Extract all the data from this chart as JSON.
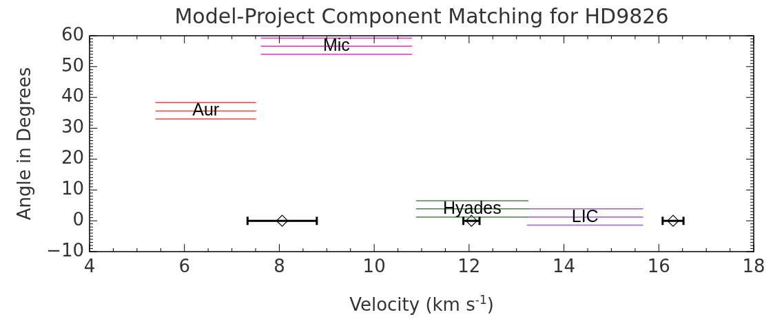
{
  "chart_data": {
    "type": "line",
    "title": "Model-Project Component Matching for HD9826",
    "xlabel": "Velocity (km s$^{-1}$)",
    "ylabel": "Angle in Degrees",
    "xlim": [
      4,
      18
    ],
    "xticks": [
      4,
      6,
      8,
      10,
      12,
      14,
      16,
      18
    ],
    "ylim": [
      -10,
      60
    ],
    "yticks": [
      -10,
      0,
      10,
      20,
      30,
      40,
      50,
      60
    ],
    "series": [
      {
        "color": "#ff3b3b",
        "x": [
          5.39,
          7.51
        ],
        "values": [
          38.3,
          38.3
        ]
      },
      {
        "name": "Aur",
        "color": "#ff3b3b",
        "x": [
          5.39,
          7.51
        ],
        "values": [
          35.6,
          35.6
        ]
      },
      {
        "color": "#ff3b3b",
        "x": [
          5.39,
          7.51
        ],
        "values": [
          33.0,
          33.0
        ]
      },
      {
        "color": "#ff22cc",
        "x": [
          7.61,
          10.8
        ],
        "values": [
          59.2,
          59.2
        ]
      },
      {
        "name": "Mic",
        "color": "#ff22cc",
        "x": [
          7.61,
          10.8
        ],
        "values": [
          56.6,
          56.6
        ]
      },
      {
        "color": "#ff22cc",
        "x": [
          7.61,
          10.8
        ],
        "values": [
          54.0,
          54.0
        ]
      },
      {
        "color": "#3f8a3f",
        "x": [
          10.88,
          13.25
        ],
        "values": [
          6.5,
          6.5
        ]
      },
      {
        "name": "Hyades",
        "color": "#3f8a3f",
        "x": [
          10.88,
          13.25
        ],
        "values": [
          3.9,
          3.9
        ]
      },
      {
        "color": "#3f8a3f",
        "x": [
          10.88,
          13.25
        ],
        "values": [
          1.2,
          1.2
        ]
      },
      {
        "color": "#a055ff",
        "x": [
          13.22,
          15.67
        ],
        "values": [
          3.9,
          3.9
        ]
      },
      {
        "name": "LIC",
        "color": "#a055ff",
        "x": [
          13.22,
          15.67
        ],
        "values": [
          1.2,
          1.2
        ]
      },
      {
        "color": "#a055ff",
        "x": [
          13.22,
          15.67
        ],
        "values": [
          -1.4,
          -1.4
        ]
      },
      {
        "type": "scatter",
        "color": "#000000",
        "marker": "diamond",
        "x": [
          8.06,
          12.05,
          16.3
        ],
        "values": [
          0,
          0,
          0
        ],
        "xerrors": [
          [
            7.33,
            8.79
          ],
          [
            11.88,
            12.22
          ],
          [
            16.08,
            16.52
          ]
        ]
      }
    ]
  }
}
